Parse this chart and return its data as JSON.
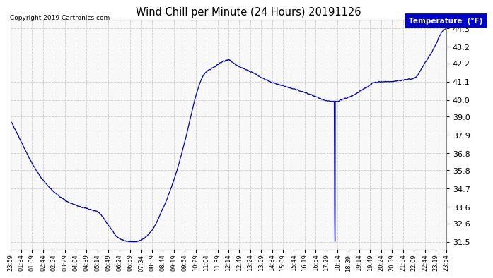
{
  "title": "Wind Chill per Minute (24 Hours) 20191126",
  "copyright": "Copyright 2019 Cartronics.com",
  "legend_label": "Temperature  (°F)",
  "line_color": "#0000bb",
  "background_color": "#ffffff",
  "plot_bg_color": "#f8f8f8",
  "grid_color": "#cccccc",
  "legend_bg": "#0000cc",
  "legend_fg": "#ffffff",
  "ylim": [
    31.0,
    44.8
  ],
  "yticks": [
    31.5,
    32.6,
    33.6,
    34.7,
    35.8,
    36.8,
    37.9,
    39.0,
    40.0,
    41.1,
    42.2,
    43.2,
    44.3
  ],
  "x_labels": [
    "23:59",
    "01:34",
    "01:09",
    "02:44",
    "02:54",
    "03:29",
    "04:04",
    "04:39",
    "05:14",
    "05:49",
    "06:24",
    "06:59",
    "07:34",
    "08:09",
    "08:44",
    "09:19",
    "09:54",
    "10:29",
    "11:04",
    "11:39",
    "12:14",
    "12:49",
    "13:24",
    "13:59",
    "14:34",
    "15:09",
    "15:44",
    "16:19",
    "16:54",
    "17:29",
    "18:04",
    "18:39",
    "19:14",
    "19:49",
    "20:24",
    "20:59",
    "21:34",
    "22:09",
    "22:44",
    "23:19",
    "23:54"
  ]
}
